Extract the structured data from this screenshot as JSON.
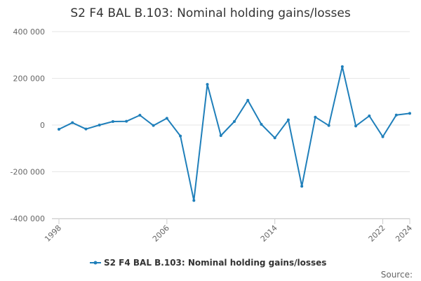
{
  "chart_data": {
    "type": "line",
    "title": "S2 F4 BAL B.103: Nominal holding gains/losses",
    "xlabel": "",
    "ylabel": "",
    "x": [
      1998,
      1999,
      2000,
      2001,
      2002,
      2003,
      2004,
      2005,
      2006,
      2007,
      2008,
      2009,
      2010,
      2011,
      2012,
      2013,
      2014,
      2015,
      2016,
      2017,
      2018,
      2019,
      2020,
      2021,
      2022,
      2023,
      2024
    ],
    "xlim": [
      1998,
      2024
    ],
    "ylim": [
      -400000,
      400000
    ],
    "x_tick_labels": [
      "1998",
      "2006",
      "2014",
      "2022",
      "2024"
    ],
    "x_tick_values": [
      1998,
      2006,
      2014,
      2022,
      2024
    ],
    "y_tick_values": [
      400000,
      200000,
      0,
      -200000,
      -400000
    ],
    "y_tick_labels": [
      "400 000",
      "200 000",
      "0",
      "-200 000",
      "-400 000"
    ],
    "series": [
      {
        "name": "S2 F4 BAL B.103: Nominal holding gains/losses",
        "color": "#1f7fba",
        "values": [
          -18000,
          10000,
          -17000,
          0,
          15000,
          16000,
          42000,
          -2000,
          29000,
          -47000,
          -323000,
          174000,
          -45000,
          15000,
          106000,
          3000,
          -55000,
          22000,
          -262000,
          34000,
          -2000,
          250000,
          -4000,
          39000,
          -50000,
          43000,
          50000
        ]
      }
    ],
    "legend": {
      "position": "bottom",
      "label": "S2 F4 BAL B.103: Nominal holding gains/losses"
    },
    "grid": true,
    "credits": "Source:"
  }
}
